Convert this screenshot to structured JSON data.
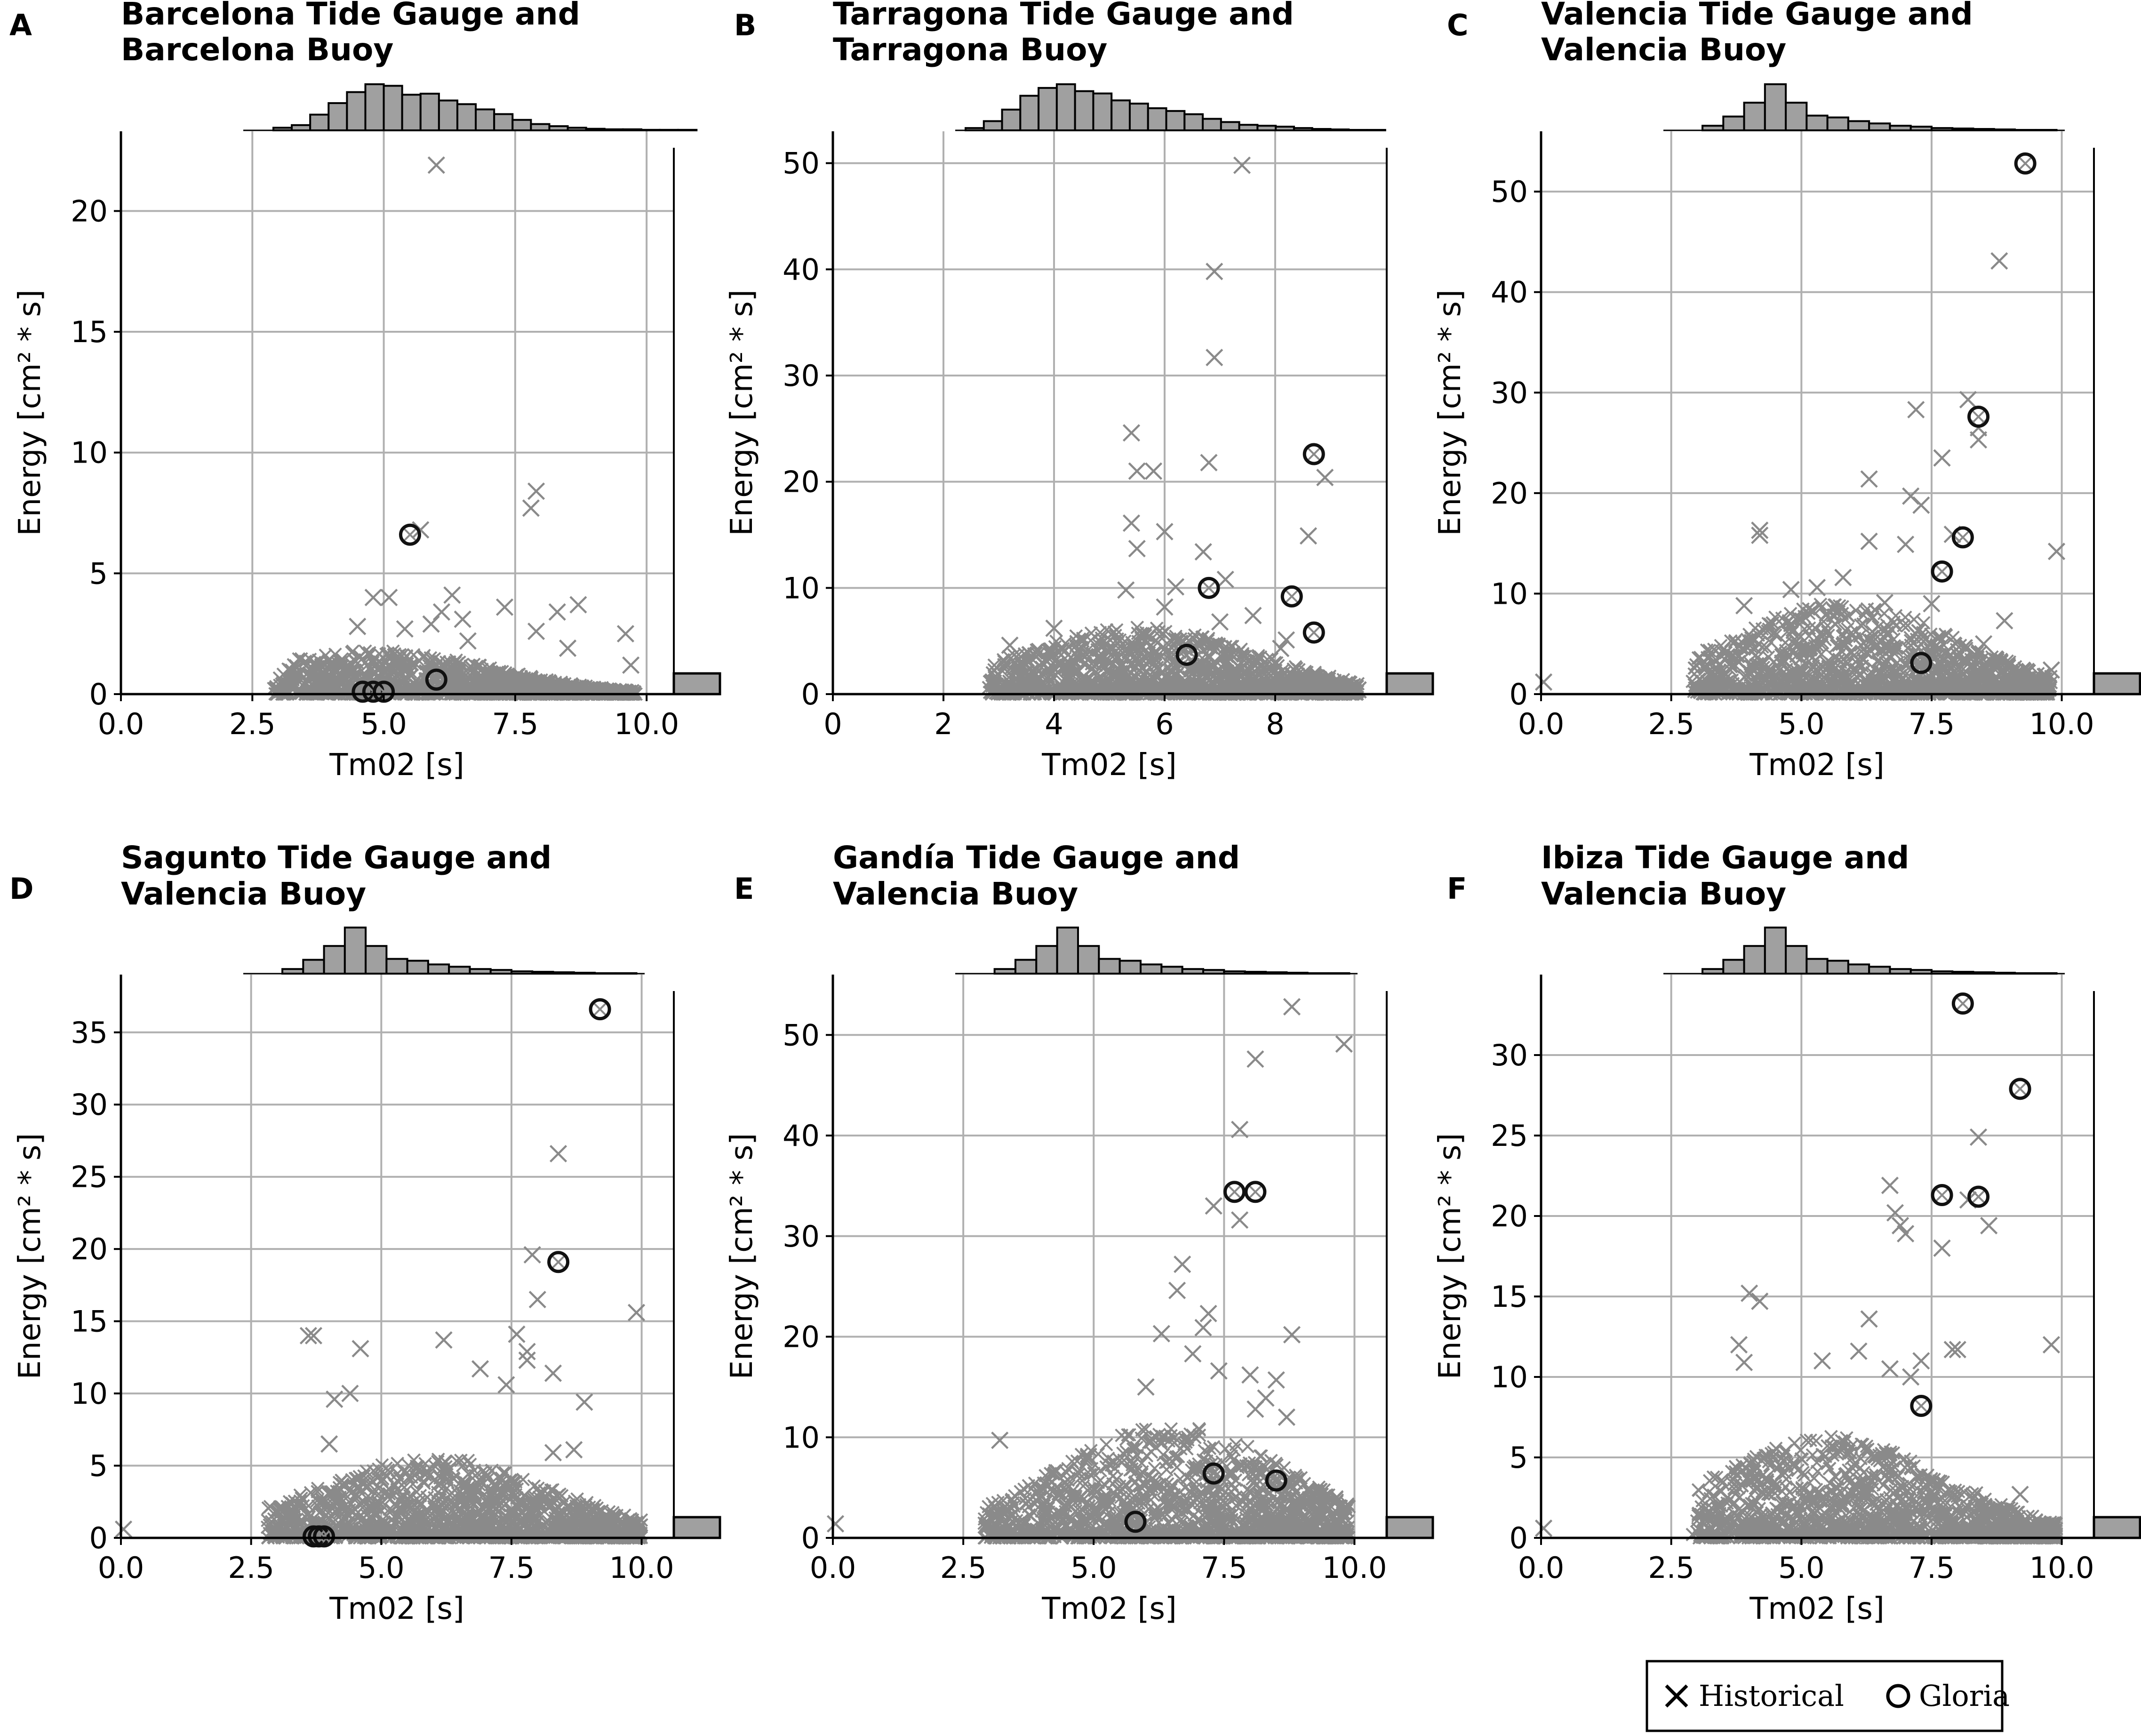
{
  "chart_data": [
    {
      "panel": "A",
      "title_lines": [
        "Barcelona Tide Gauge and",
        "Barcelona Buoy"
      ],
      "type": "scatter",
      "xlabel": "Tm02 [s]",
      "ylabel": "Energy [cm² * s]",
      "xlim": [
        0,
        10.5
      ],
      "ylim": [
        0,
        23.3
      ],
      "xticks": [
        0.0,
        2.5,
        5.0,
        7.5,
        10.0
      ],
      "xticklabels": [
        "0.0",
        "2.5",
        "5.0",
        "7.5",
        "10.0"
      ],
      "yticks": [
        0,
        5,
        10,
        15,
        20
      ],
      "yticklabels": [
        "0",
        "5",
        "10",
        "15",
        "20"
      ],
      "grid": true,
      "cloud": {
        "xmin": 2.9,
        "xmax": 9.8,
        "peak": 4.8,
        "ymax": 1.3
      },
      "historical_outliers": [
        [
          6.0,
          21.9
        ],
        [
          7.9,
          8.4
        ],
        [
          7.8,
          7.7
        ],
        [
          5.7,
          6.8
        ],
        [
          4.8,
          4.0
        ],
        [
          5.1,
          4.0
        ],
        [
          6.3,
          4.1
        ],
        [
          6.1,
          3.4
        ],
        [
          7.3,
          3.6
        ],
        [
          8.7,
          3.7
        ],
        [
          9.6,
          2.5
        ],
        [
          8.3,
          3.4
        ],
        [
          5.4,
          2.7
        ],
        [
          7.9,
          2.6
        ],
        [
          9.7,
          1.2
        ],
        [
          6.6,
          2.2
        ],
        [
          8.5,
          1.9
        ],
        [
          4.5,
          2.8
        ],
        [
          5.9,
          2.9
        ],
        [
          6.5,
          3.1
        ]
      ],
      "gloria": [
        [
          5.5,
          6.6
        ],
        [
          6.0,
          0.6
        ],
        [
          4.6,
          0.1
        ],
        [
          4.8,
          0.1
        ],
        [
          5.0,
          0.1
        ]
      ],
      "top_hist": {
        "edges_start": 2.9,
        "bin_width": 0.35,
        "counts": [
          5,
          10,
          30,
          52,
          73,
          88,
          85,
          68,
          70,
          57,
          50,
          40,
          31,
          20,
          12,
          8,
          5,
          3,
          2,
          2,
          1,
          1,
          1
        ]
      },
      "right_hist": {
        "bin_width": 0.8,
        "counts": [
          100
        ]
      }
    },
    {
      "panel": "B",
      "title_lines": [
        "Tarragona Tide Gauge and",
        "Tarragona Buoy"
      ],
      "type": "scatter",
      "xlabel": "Tm02 [s]",
      "ylabel": "Energy [cm² * s]",
      "xlim": [
        0,
        10
      ],
      "ylim": [
        0,
        53
      ],
      "xticks": [
        0,
        2,
        4,
        6,
        8
      ],
      "xticklabels": [
        "0",
        "2",
        "4",
        "6",
        "8"
      ],
      "yticks": [
        0,
        10,
        20,
        30,
        40,
        50
      ],
      "yticklabels": [
        "0",
        "10",
        "20",
        "30",
        "40",
        "50"
      ],
      "grid": true,
      "cloud": {
        "xmin": 2.8,
        "xmax": 9.5,
        "peak": 5.5,
        "ymax": 4.5
      },
      "historical_outliers": [
        [
          7.4,
          49.8
        ],
        [
          6.9,
          39.8
        ],
        [
          6.9,
          31.7
        ],
        [
          5.4,
          24.6
        ],
        [
          6.8,
          21.8
        ],
        [
          5.5,
          21.0
        ],
        [
          5.8,
          21.0
        ],
        [
          8.9,
          20.4
        ],
        [
          6.0,
          15.3
        ],
        [
          5.4,
          16.1
        ],
        [
          8.6,
          14.9
        ],
        [
          5.5,
          13.7
        ],
        [
          6.7,
          13.4
        ],
        [
          7.1,
          10.8
        ],
        [
          6.2,
          10.1
        ],
        [
          5.3,
          9.8
        ],
        [
          7.6,
          7.4
        ],
        [
          8.2,
          5.1
        ],
        [
          4.0,
          6.2
        ],
        [
          3.2,
          4.6
        ],
        [
          8.1,
          4.3
        ],
        [
          9.1,
          1.0
        ],
        [
          9.5,
          0.4
        ],
        [
          7.0,
          6.8
        ],
        [
          6.0,
          8.2
        ]
      ],
      "gloria": [
        [
          8.7,
          22.6
        ],
        [
          6.8,
          10.0
        ],
        [
          8.3,
          9.2
        ],
        [
          8.7,
          5.8
        ],
        [
          6.4,
          3.7
        ]
      ],
      "top_hist": {
        "edges_start": 2.4,
        "bin_width": 0.33,
        "counts": [
          5,
          20,
          45,
          75,
          92,
          100,
          85,
          80,
          65,
          58,
          48,
          42,
          35,
          25,
          18,
          12,
          10,
          8,
          5,
          3,
          2,
          1,
          1
        ]
      },
      "right_hist": {
        "bin_width": 1.6,
        "counts": [
          100
        ]
      }
    },
    {
      "panel": "C",
      "title_lines": [
        "Valencia Tide Gauge and",
        "Valencia Buoy"
      ],
      "type": "scatter",
      "xlabel": "Tm02 [s]",
      "ylabel": "Energy [cm² * s]",
      "xlim": [
        0,
        10.6
      ],
      "ylim": [
        0,
        56
      ],
      "xticks": [
        0.0,
        2.5,
        5.0,
        7.5,
        10.0
      ],
      "xticklabels": [
        "0.0",
        "2.5",
        "5.0",
        "7.5",
        "10.0"
      ],
      "yticks": [
        0,
        10,
        20,
        30,
        40,
        50
      ],
      "yticklabels": [
        "0",
        "10",
        "20",
        "30",
        "40",
        "50"
      ],
      "grid": true,
      "cloud": {
        "xmin": 2.9,
        "xmax": 9.8,
        "peak": 5.8,
        "ymax": 6.5
      },
      "historical_outliers": [
        [
          8.8,
          43.1
        ],
        [
          8.2,
          29.3
        ],
        [
          7.2,
          28.3
        ],
        [
          8.4,
          26.5
        ],
        [
          8.4,
          25.3
        ],
        [
          7.7,
          23.5
        ],
        [
          6.3,
          21.4
        ],
        [
          7.1,
          19.7
        ],
        [
          7.3,
          18.8
        ],
        [
          4.2,
          16.3
        ],
        [
          4.2,
          15.8
        ],
        [
          6.3,
          15.2
        ],
        [
          7.9,
          15.9
        ],
        [
          9.9,
          14.2
        ],
        [
          5.8,
          11.6
        ],
        [
          7.0,
          14.9
        ],
        [
          5.3,
          10.6
        ],
        [
          4.8,
          10.4
        ],
        [
          3.9,
          8.8
        ],
        [
          9.8,
          2.4
        ],
        [
          0.05,
          1.2
        ],
        [
          8.9,
          7.3
        ],
        [
          8.5,
          5.0
        ],
        [
          9.0,
          1.0
        ],
        [
          6.6,
          9.1
        ],
        [
          7.5,
          9.0
        ]
      ],
      "gloria": [
        [
          9.3,
          52.8
        ],
        [
          8.4,
          27.6
        ],
        [
          8.1,
          15.6
        ],
        [
          7.7,
          12.2
        ],
        [
          7.3,
          3.1
        ]
      ],
      "top_hist": {
        "edges_start": 3.1,
        "bin_width": 0.4,
        "counts": [
          10,
          30,
          60,
          100,
          60,
          32,
          28,
          20,
          15,
          10,
          8,
          5,
          4,
          3,
          2,
          1,
          1
        ]
      },
      "right_hist": {
        "bin_width": 0.8,
        "counts": [
          100
        ]
      }
    },
    {
      "panel": "D",
      "title_lines": [
        "Sagunto Tide Gauge and",
        "Valencia Buoy"
      ],
      "type": "scatter",
      "xlabel": "Tm02 [s]",
      "ylabel": "Energy [cm² * s]",
      "xlim": [
        0,
        10.6
      ],
      "ylim": [
        0,
        39
      ],
      "xticks": [
        0.0,
        2.5,
        5.0,
        7.5,
        10.0
      ],
      "xticklabels": [
        "0.0",
        "2.5",
        "5.0",
        "7.5",
        "10.0"
      ],
      "yticks": [
        0,
        5,
        10,
        15,
        20,
        25,
        30,
        35
      ],
      "yticklabels": [
        "0",
        "5",
        "10",
        "15",
        "20",
        "25",
        "30",
        "35"
      ],
      "grid": true,
      "cloud": {
        "xmin": 2.8,
        "xmax": 10.0,
        "peak": 6.0,
        "ymax": 4.0
      },
      "historical_outliers": [
        [
          8.4,
          26.6
        ],
        [
          7.9,
          19.6
        ],
        [
          8.0,
          16.5
        ],
        [
          9.9,
          15.6
        ],
        [
          3.6,
          14.0
        ],
        [
          3.7,
          14.0
        ],
        [
          7.6,
          14.1
        ],
        [
          6.2,
          13.7
        ],
        [
          7.8,
          12.9
        ],
        [
          4.6,
          13.1
        ],
        [
          7.8,
          12.3
        ],
        [
          8.3,
          11.4
        ],
        [
          6.9,
          11.7
        ],
        [
          8.9,
          9.4
        ],
        [
          4.1,
          9.6
        ],
        [
          4.4,
          10.0
        ],
        [
          8.3,
          5.9
        ],
        [
          9.7,
          0.7
        ],
        [
          0.05,
          0.6
        ],
        [
          8.7,
          6.1
        ],
        [
          7.4,
          10.6
        ],
        [
          4.0,
          6.5
        ]
      ],
      "gloria": [
        [
          9.2,
          36.6
        ],
        [
          8.4,
          19.1
        ],
        [
          3.7,
          0.1
        ],
        [
          3.8,
          0.1
        ],
        [
          3.9,
          0.1
        ]
      ],
      "top_hist": {
        "edges_start": 3.1,
        "bin_width": 0.4,
        "counts": [
          10,
          30,
          60,
          100,
          60,
          32,
          28,
          20,
          15,
          10,
          8,
          5,
          4,
          3,
          2,
          1,
          1
        ]
      },
      "right_hist": {
        "bin_width": 0.8,
        "counts": [
          100
        ]
      }
    },
    {
      "panel": "E",
      "title_lines": [
        "Gandía Tide Gauge and",
        "Valencia Buoy"
      ],
      "type": "scatter",
      "xlabel": "Tm02 [s]",
      "ylabel": "Energy [cm² * s]",
      "xlim": [
        0,
        10.6
      ],
      "ylim": [
        0,
        56
      ],
      "xticks": [
        0.0,
        2.5,
        5.0,
        7.5,
        10.0
      ],
      "xticklabels": [
        "0.0",
        "2.5",
        "5.0",
        "7.5",
        "10.0"
      ],
      "yticks": [
        0,
        10,
        20,
        30,
        40,
        50
      ],
      "yticklabels": [
        "0",
        "10",
        "20",
        "30",
        "40",
        "50"
      ],
      "grid": true,
      "cloud": {
        "xmin": 2.9,
        "xmax": 9.9,
        "peak": 6.5,
        "ymax": 8.0
      },
      "historical_outliers": [
        [
          8.8,
          52.8
        ],
        [
          9.8,
          49.1
        ],
        [
          8.1,
          47.6
        ],
        [
          7.8,
          40.6
        ],
        [
          7.8,
          31.6
        ],
        [
          7.3,
          33.0
        ],
        [
          6.7,
          27.2
        ],
        [
          8.8,
          20.2
        ],
        [
          7.1,
          20.9
        ],
        [
          6.6,
          24.6
        ],
        [
          7.2,
          22.3
        ],
        [
          6.3,
          20.3
        ],
        [
          8.0,
          16.2
        ],
        [
          8.5,
          15.7
        ],
        [
          7.4,
          16.6
        ],
        [
          6.0,
          15.0
        ],
        [
          8.3,
          13.9
        ],
        [
          8.1,
          12.8
        ],
        [
          3.2,
          9.7
        ],
        [
          4.9,
          8.1
        ],
        [
          9.8,
          2.1
        ],
        [
          0.05,
          1.4
        ],
        [
          8.7,
          12.0
        ],
        [
          6.9,
          18.3
        ]
      ],
      "gloria": [
        [
          7.7,
          34.4
        ],
        [
          8.1,
          34.4
        ],
        [
          7.3,
          6.4
        ],
        [
          8.5,
          5.7
        ],
        [
          5.8,
          1.6
        ]
      ],
      "top_hist": {
        "edges_start": 3.1,
        "bin_width": 0.4,
        "counts": [
          10,
          30,
          60,
          100,
          60,
          32,
          28,
          20,
          15,
          10,
          8,
          5,
          4,
          3,
          2,
          1,
          1
        ]
      },
      "right_hist": {
        "bin_width": 0.8,
        "counts": [
          100
        ]
      }
    },
    {
      "panel": "F",
      "title_lines": [
        "Ibiza Tide Gauge and",
        "Valencia Buoy"
      ],
      "type": "scatter",
      "xlabel": "Tm02 [s]",
      "ylabel": "Energy [cm² * s]",
      "xlim": [
        0,
        10.6
      ],
      "ylim": [
        0,
        35
      ],
      "xticks": [
        0.0,
        2.5,
        5.0,
        7.5,
        10.0
      ],
      "xticklabels": [
        "0.0",
        "2.5",
        "5.0",
        "7.5",
        "10.0"
      ],
      "yticks": [
        0,
        5,
        10,
        15,
        20,
        25,
        30
      ],
      "yticklabels": [
        "0",
        "5",
        "10",
        "15",
        "20",
        "25",
        "30"
      ],
      "grid": true,
      "cloud": {
        "xmin": 2.9,
        "xmax": 9.9,
        "peak": 5.5,
        "ymax": 4.5
      },
      "historical_outliers": [
        [
          8.4,
          24.9
        ],
        [
          6.7,
          21.9
        ],
        [
          6.8,
          20.2
        ],
        [
          6.9,
          19.4
        ],
        [
          7.0,
          18.9
        ],
        [
          8.6,
          19.4
        ],
        [
          8.2,
          21.0
        ],
        [
          7.7,
          18.0
        ],
        [
          7.9,
          11.7
        ],
        [
          8.0,
          11.7
        ],
        [
          7.3,
          11.0
        ],
        [
          9.8,
          12.0
        ],
        [
          4.0,
          15.2
        ],
        [
          4.2,
          14.7
        ],
        [
          3.8,
          12.0
        ],
        [
          3.9,
          10.9
        ],
        [
          6.3,
          13.6
        ],
        [
          5.4,
          11.0
        ],
        [
          6.7,
          10.5
        ],
        [
          9.2,
          2.7
        ],
        [
          9.8,
          0.4
        ],
        [
          0.05,
          0.6
        ],
        [
          6.1,
          11.6
        ],
        [
          7.1,
          10.0
        ]
      ],
      "gloria": [
        [
          8.1,
          33.2
        ],
        [
          9.2,
          27.9
        ],
        [
          7.7,
          21.3
        ],
        [
          8.4,
          21.2
        ],
        [
          7.3,
          8.2
        ]
      ],
      "top_hist": {
        "edges_start": 3.1,
        "bin_width": 0.4,
        "counts": [
          10,
          30,
          60,
          100,
          60,
          32,
          28,
          20,
          15,
          10,
          8,
          5,
          4,
          3,
          2,
          1,
          1
        ]
      },
      "right_hist": {
        "bin_width": 0.8,
        "counts": [
          100
        ]
      }
    }
  ],
  "legend": {
    "historical_label": "Historical",
    "gloria_label": "Gloria"
  },
  "colors": {
    "historical": "#8a8a8a",
    "gloria": "#111111",
    "grid": "#b0b0b0",
    "hist_fill": "#a0a0a0",
    "axis": "#000000"
  }
}
